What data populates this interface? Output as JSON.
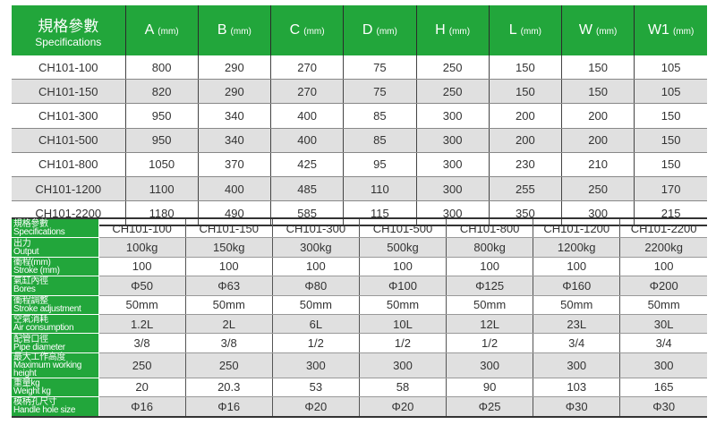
{
  "dims": {
    "header_zh": "規格參數",
    "header_en": "Specifications",
    "unit": "(mm)",
    "columns": [
      "A",
      "B",
      "C",
      "D",
      "H",
      "L",
      "W",
      "W1"
    ],
    "rows": [
      [
        "CH101-100",
        "800",
        "290",
        "270",
        "75",
        "250",
        "150",
        "150",
        "105"
      ],
      [
        "CH101-150",
        "820",
        "290",
        "270",
        "75",
        "250",
        "150",
        "150",
        "105"
      ],
      [
        "CH101-300",
        "950",
        "340",
        "400",
        "85",
        "300",
        "200",
        "200",
        "150"
      ],
      [
        "CH101-500",
        "950",
        "340",
        "400",
        "85",
        "300",
        "200",
        "200",
        "150"
      ],
      [
        "CH101-800",
        "1050",
        "370",
        "425",
        "95",
        "300",
        "230",
        "210",
        "150"
      ],
      [
        "CH101-1200",
        "1100",
        "400",
        "485",
        "110",
        "300",
        "255",
        "250",
        "170"
      ],
      [
        "CH101-2200",
        "1180",
        "490",
        "585",
        "115",
        "300",
        "350",
        "300",
        "215"
      ]
    ]
  },
  "specs": {
    "rows": [
      {
        "zh": "規格參數",
        "en": "Specifications",
        "values": [
          "CH101-100",
          "CH101-150",
          "CH101-300",
          "CH101-500",
          "CH101-800",
          "CH101-1200",
          "CH101-2200"
        ]
      },
      {
        "zh": "出力",
        "en": "Output",
        "values": [
          "100kg",
          "150kg",
          "300kg",
          "500kg",
          "800kg",
          "1200kg",
          "2200kg"
        ]
      },
      {
        "zh": "衝程(mm)",
        "en": "Stroke (mm)",
        "values": [
          "100",
          "100",
          "100",
          "100",
          "100",
          "100",
          "100"
        ]
      },
      {
        "zh": "氣缸內徑",
        "en": "Bores",
        "values": [
          "Φ50",
          "Φ63",
          "Φ80",
          "Φ100",
          "Φ125",
          "Φ160",
          "Φ200"
        ]
      },
      {
        "zh": "衝程調整",
        "en": "Stroke adjustment",
        "values": [
          "50mm",
          "50mm",
          "50mm",
          "50mm",
          "50mm",
          "50mm",
          "50mm"
        ]
      },
      {
        "zh": "空氣消耗",
        "en": "Air consumption",
        "values": [
          "1.2L",
          "2L",
          "6L",
          "10L",
          "12L",
          "23L",
          "30L"
        ]
      },
      {
        "zh": "配管口徑",
        "en": "Pipe diameter",
        "values": [
          "3/8",
          "3/8",
          "1/2",
          "1/2",
          "1/2",
          "3/4",
          "3/4"
        ]
      },
      {
        "zh": "最大工作高度",
        "en": "Maximum working height",
        "values": [
          "250",
          "250",
          "300",
          "300",
          "300",
          "300",
          "300"
        ]
      },
      {
        "zh": "重量kg",
        "en": "Weight kg",
        "values": [
          "20",
          "20.3",
          "53",
          "58",
          "90",
          "103",
          "165"
        ]
      },
      {
        "zh": "模柄孔尺寸",
        "en": "Handle hole size",
        "values": [
          "Φ16",
          "Φ16",
          "Φ20",
          "Φ20",
          "Φ25",
          "Φ30",
          "Φ30"
        ]
      }
    ]
  },
  "colors": {
    "header_green": "#22a63b",
    "stripe": "#e0e0e0"
  }
}
